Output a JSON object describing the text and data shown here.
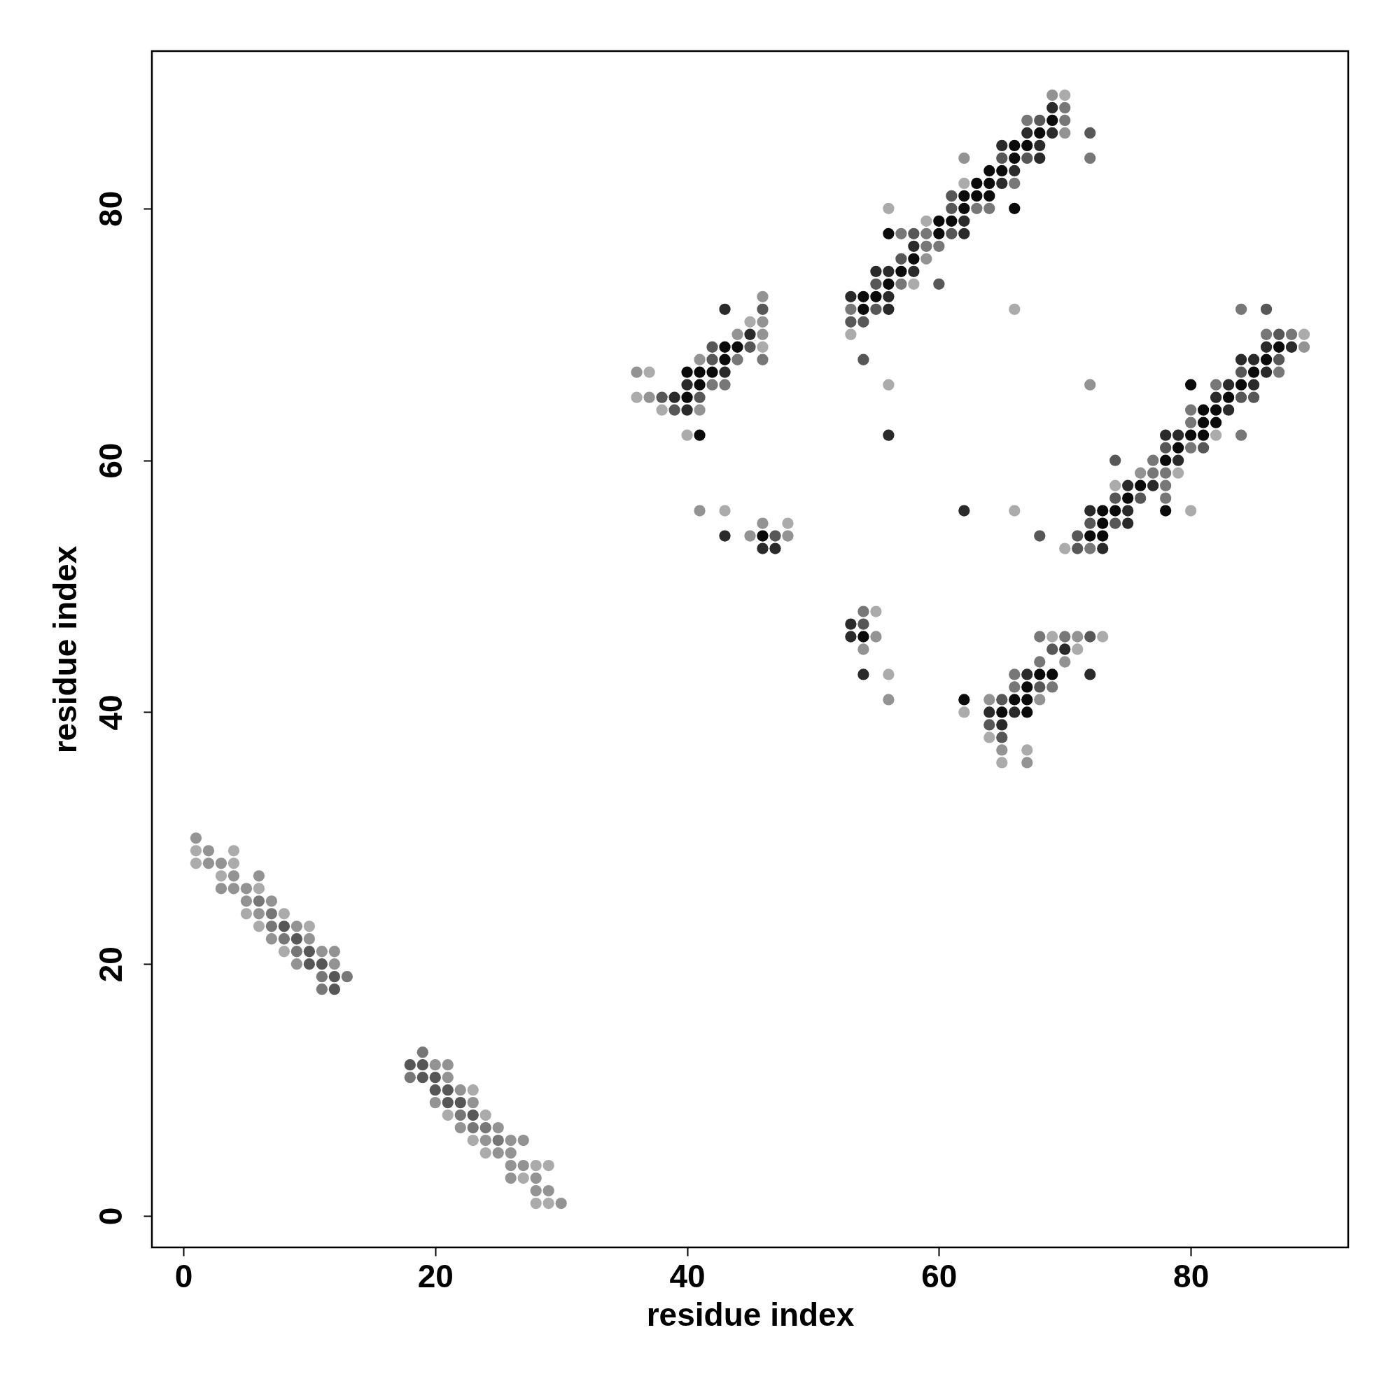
{
  "chart_data": {
    "type": "scatter",
    "xlabel": "residue index",
    "ylabel": "residue index",
    "xlim": [
      -2.5,
      92.5
    ],
    "ylim": [
      -2.5,
      92.5
    ],
    "xticks": [
      0,
      20,
      40,
      60,
      80
    ],
    "yticks": [
      0,
      20,
      40,
      60,
      80
    ],
    "marker": "circle",
    "series": [
      {
        "color": "#ababab",
        "x": [
          1,
          4,
          1,
          4,
          3,
          6,
          5,
          8,
          6,
          10,
          8,
          23,
          21,
          24,
          23,
          24,
          28,
          29,
          27,
          28,
          29,
          45,
          46,
          37,
          36,
          38,
          40,
          43,
          48,
          70,
          56,
          62,
          59,
          58,
          66,
          53,
          56,
          66,
          70,
          89,
          82,
          74,
          79,
          80,
          55,
          56,
          69,
          73,
          71,
          62,
          64,
          67,
          65
        ],
        "values": [
          29,
          29,
          28,
          28,
          27,
          26,
          24,
          24,
          23,
          23,
          21,
          10,
          8,
          8,
          6,
          5,
          4,
          4,
          3,
          1,
          1,
          71,
          69,
          67,
          65,
          64,
          62,
          56,
          55,
          89,
          80,
          82,
          79,
          74,
          72,
          70,
          66,
          56,
          53,
          70,
          62,
          58,
          59,
          56,
          48,
          43,
          46,
          46,
          45,
          40,
          38,
          37,
          36
        ]
      },
      {
        "color": "#939393",
        "x": [
          1,
          2,
          2,
          3,
          4,
          6,
          3,
          4,
          5,
          5,
          7,
          6,
          9,
          7,
          10,
          11,
          12,
          9,
          12,
          20,
          21,
          21,
          22,
          20,
          23,
          22,
          25,
          24,
          26,
          27,
          25,
          26,
          26,
          27,
          26,
          28,
          28,
          29,
          30,
          46,
          46,
          44,
          46,
          41,
          36,
          37,
          41,
          41,
          46,
          45,
          48,
          69,
          70,
          62,
          59,
          72,
          89,
          76,
          55,
          54,
          56,
          71,
          70,
          64,
          68,
          65,
          67
        ],
        "values": [
          30,
          29,
          28,
          28,
          27,
          27,
          26,
          26,
          26,
          25,
          25,
          24,
          23,
          22,
          22,
          21,
          21,
          20,
          20,
          12,
          12,
          11,
          10,
          9,
          9,
          7,
          7,
          6,
          6,
          6,
          5,
          5,
          4,
          4,
          3,
          3,
          2,
          2,
          1,
          73,
          71,
          70,
          70,
          68,
          67,
          65,
          64,
          56,
          55,
          54,
          54,
          89,
          86,
          84,
          76,
          66,
          69,
          59,
          46,
          45,
          41,
          46,
          44,
          41,
          41,
          37,
          36
        ]
      },
      {
        "color": "#777777",
        "x": [
          6,
          7,
          7,
          8,
          9,
          11,
          13,
          11,
          19,
          18,
          22,
          23,
          24,
          25,
          44,
          46,
          42,
          43,
          70,
          67,
          70,
          72,
          66,
          63,
          64,
          57,
          59,
          59,
          60,
          57,
          53,
          84,
          86,
          88,
          87,
          82,
          80,
          80,
          84,
          80,
          77,
          77,
          78,
          78,
          78,
          72,
          54,
          68,
          70,
          68,
          66,
          66,
          69
        ],
        "values": [
          25,
          24,
          23,
          22,
          21,
          19,
          19,
          18,
          13,
          11,
          8,
          7,
          7,
          6,
          68,
          68,
          66,
          66,
          88,
          87,
          87,
          84,
          82,
          80,
          80,
          78,
          78,
          77,
          77,
          74,
          72,
          72,
          70,
          70,
          67,
          66,
          64,
          63,
          62,
          61,
          60,
          59,
          59,
          58,
          57,
          53,
          48,
          46,
          46,
          44,
          43,
          42,
          42
        ]
      },
      {
        "color": "#575757",
        "x": [
          8,
          9,
          10,
          10,
          11,
          12,
          12,
          18,
          19,
          19,
          20,
          20,
          21,
          21,
          22,
          23,
          46,
          42,
          45,
          42,
          38,
          41,
          39,
          47,
          68,
          72,
          65,
          67,
          61,
          61,
          58,
          61,
          57,
          55,
          60,
          55,
          53,
          54,
          54,
          68,
          86,
          87,
          87,
          84,
          84,
          85,
          78,
          81,
          74,
          74,
          76,
          72,
          74,
          71,
          71,
          54,
          69,
          68,
          65,
          64,
          65,
          72
        ],
        "values": [
          23,
          22,
          21,
          20,
          20,
          19,
          18,
          12,
          12,
          11,
          11,
          10,
          10,
          9,
          9,
          8,
          72,
          69,
          69,
          68,
          65,
          65,
          64,
          54,
          87,
          86,
          84,
          84,
          81,
          80,
          78,
          78,
          76,
          74,
          74,
          72,
          71,
          71,
          68,
          54,
          72,
          70,
          68,
          67,
          65,
          65,
          61,
          61,
          60,
          57,
          57,
          55,
          55,
          54,
          53,
          47,
          45,
          42,
          41,
          39,
          38,
          46
        ]
      },
      {
        "color": "#2a2a2a",
        "x": [
          43,
          45,
          43,
          40,
          39,
          40,
          43,
          46,
          47,
          69,
          67,
          69,
          65,
          68,
          68,
          66,
          65,
          62,
          62,
          58,
          55,
          56,
          58,
          53,
          56,
          56,
          56,
          62,
          86,
          88,
          84,
          85,
          86,
          85,
          83,
          82,
          83,
          78,
          79,
          79,
          75,
          77,
          72,
          75,
          75,
          73,
          53,
          53,
          54,
          70,
          67,
          72,
          64,
          66,
          65
        ],
        "values": [
          72,
          70,
          67,
          66,
          65,
          64,
          54,
          53,
          53,
          88,
          86,
          86,
          85,
          85,
          84,
          83,
          82,
          79,
          78,
          77,
          75,
          75,
          75,
          73,
          73,
          72,
          62,
          56,
          69,
          69,
          68,
          68,
          67,
          66,
          66,
          65,
          64,
          62,
          62,
          60,
          58,
          58,
          56,
          56,
          55,
          53,
          47,
          46,
          43,
          45,
          43,
          43,
          40,
          40,
          39
        ]
      },
      {
        "color": "#0a0a0a",
        "x": [
          43,
          44,
          43,
          40,
          41,
          42,
          41,
          40,
          41,
          46,
          69,
          68,
          66,
          67,
          66,
          64,
          65,
          63,
          64,
          62,
          63,
          64,
          62,
          66,
          60,
          61,
          56,
          60,
          58,
          57,
          56,
          54,
          55,
          54,
          87,
          86,
          85,
          80,
          84,
          83,
          81,
          82,
          81,
          82,
          80,
          81,
          79,
          78,
          76,
          75,
          73,
          74,
          78,
          73,
          72,
          73,
          54,
          68,
          69,
          67,
          62,
          66,
          67,
          65,
          67
        ],
        "values": [
          69,
          69,
          68,
          67,
          67,
          67,
          66,
          65,
          62,
          54,
          87,
          86,
          85,
          85,
          84,
          83,
          83,
          82,
          82,
          81,
          81,
          81,
          80,
          80,
          79,
          79,
          78,
          78,
          76,
          75,
          74,
          73,
          73,
          72,
          69,
          68,
          67,
          66,
          66,
          65,
          64,
          64,
          63,
          63,
          62,
          62,
          61,
          60,
          58,
          57,
          56,
          56,
          56,
          55,
          54,
          54,
          46,
          43,
          43,
          42,
          41,
          41,
          41,
          40,
          40
        ]
      }
    ]
  }
}
